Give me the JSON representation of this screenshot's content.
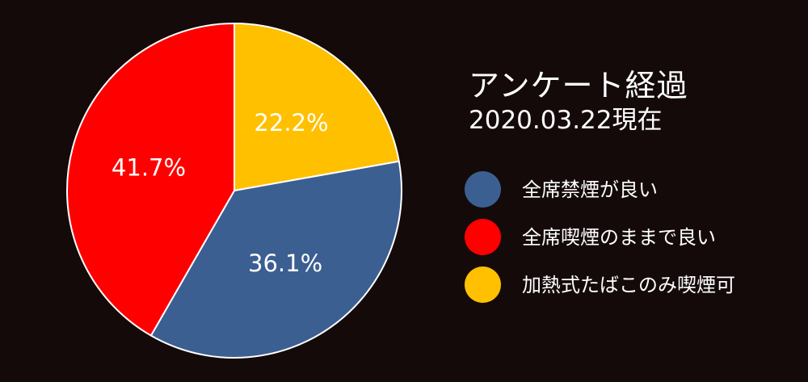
{
  "chart_data": {
    "type": "pie",
    "title": "アンケート経過",
    "subtitle": "2020.03.22現在",
    "legend_position": "right",
    "series": [
      {
        "name": "全席禁煙が良い",
        "value": 36.1,
        "label": "36.1%",
        "color": "#3c5f91"
      },
      {
        "name": "全席喫煙のままで良い",
        "value": 41.7,
        "label": "41.7%",
        "color": "#ff0000"
      },
      {
        "name": "加熱式たばこのみ喫煙可",
        "value": 22.2,
        "label": "22.2%",
        "color": "#ffc000"
      }
    ],
    "start_angle_deg": 0,
    "direction": "clockwise",
    "slice_order": [
      2,
      0,
      1
    ],
    "background": "#150a0a"
  }
}
